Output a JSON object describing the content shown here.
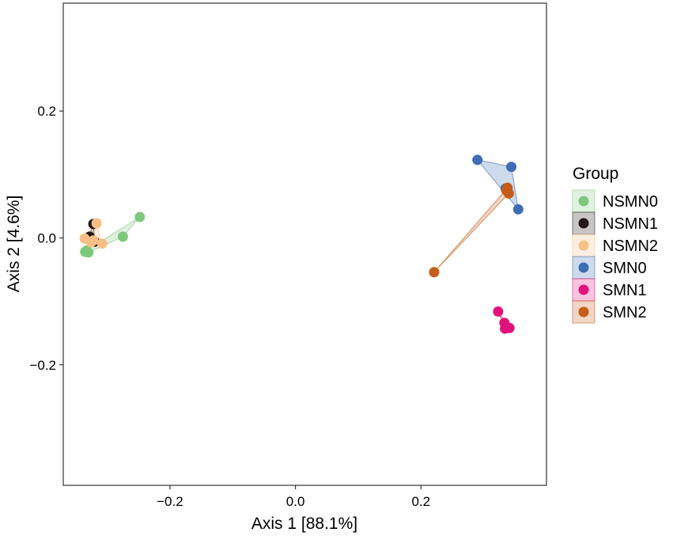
{
  "chart_data": {
    "type": "scatter",
    "title": "",
    "xlabel": "Axis 1 [88.1%]",
    "ylabel": "Axis 2 [4.6%]",
    "xlim": [
      -0.37,
      0.4
    ],
    "ylim": [
      -0.39,
      0.37
    ],
    "xticks": [
      -0.2,
      0.0,
      0.2
    ],
    "xtick_labels": [
      "−0.2",
      "0.0",
      "0.2"
    ],
    "yticks": [
      -0.2,
      0.0,
      0.2
    ],
    "ytick_labels": [
      "−0.2",
      "0.0",
      "0.2"
    ],
    "grid": false,
    "legend_title": "Group",
    "legend_position": "right",
    "series": [
      {
        "name": "NSMN0",
        "color": "#7ec87e",
        "points": [
          [
            -0.248,
            0.033
          ],
          [
            -0.275,
            0.002
          ],
          [
            -0.335,
            -0.022
          ],
          [
            -0.333,
            -0.02
          ],
          [
            -0.33,
            -0.023
          ]
        ]
      },
      {
        "name": "NSMN1",
        "color": "#231916",
        "points": [
          [
            -0.322,
            0.022
          ],
          [
            -0.33,
            0.0
          ],
          [
            -0.325,
            -0.004
          ],
          [
            -0.32,
            -0.006
          ],
          [
            -0.328,
            0.002
          ]
        ]
      },
      {
        "name": "NSMN2",
        "color": "#f7bf85",
        "points": [
          [
            -0.317,
            0.023
          ],
          [
            -0.336,
            -0.001
          ],
          [
            -0.322,
            -0.004
          ],
          [
            -0.326,
            -0.007
          ],
          [
            -0.308,
            -0.009
          ]
        ]
      },
      {
        "name": "SMN0",
        "color": "#3d6eb4",
        "points": [
          [
            0.29,
            0.123
          ],
          [
            0.344,
            0.112
          ],
          [
            0.335,
            0.078
          ],
          [
            0.355,
            0.045
          ],
          [
            0.338,
            0.074
          ]
        ]
      },
      {
        "name": "SMN1",
        "color": "#e2127c",
        "points": [
          [
            0.323,
            -0.116
          ],
          [
            0.333,
            -0.134
          ],
          [
            0.334,
            -0.143
          ],
          [
            0.341,
            -0.142
          ],
          [
            0.336,
            -0.14
          ]
        ]
      },
      {
        "name": "SMN2",
        "color": "#c55c17",
        "points": [
          [
            0.221,
            -0.054
          ],
          [
            0.34,
            0.07
          ],
          [
            0.337,
            0.077
          ],
          [
            0.338,
            0.079
          ],
          [
            0.336,
            0.075
          ]
        ]
      }
    ]
  }
}
